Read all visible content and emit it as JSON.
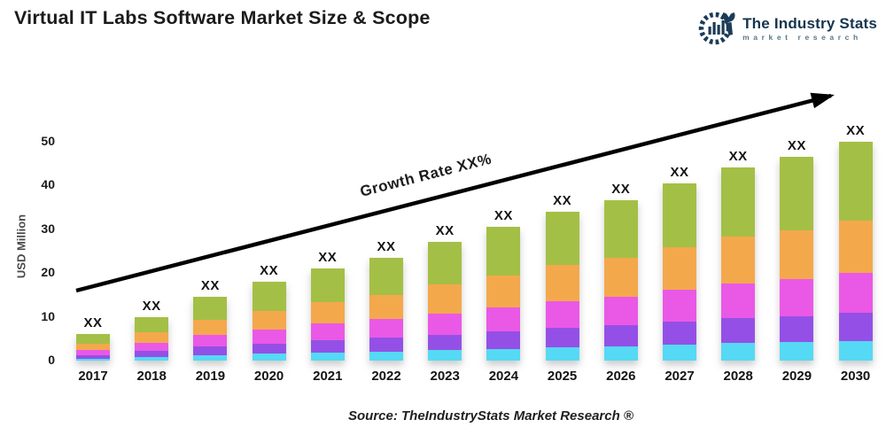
{
  "header": {
    "title": "Virtual IT Labs Software Market Size & Scope"
  },
  "logo": {
    "name": "The Industry Stats",
    "tagline": "market research",
    "color": "#16344f"
  },
  "chart_data": {
    "type": "bar",
    "stacked": true,
    "title": "Virtual IT Labs Software Market Size & Scope",
    "xlabel": "",
    "ylabel": "USD Million",
    "ylim": [
      0,
      50
    ],
    "yticks": [
      0,
      10,
      20,
      30,
      40,
      50
    ],
    "grid": false,
    "legend_position": "none",
    "bar_value_label": "XX",
    "annotation": {
      "text": "Growth Rate XX%",
      "style": "diagonal-arrow"
    },
    "categories": [
      "2017",
      "2018",
      "2019",
      "2020",
      "2021",
      "2022",
      "2023",
      "2024",
      "2025",
      "2026",
      "2027",
      "2028",
      "2029",
      "2030"
    ],
    "series": [
      {
        "name": "segment-cyan",
        "color": "#55d9f4",
        "values": [
          0.5,
          0.9,
          1.3,
          1.6,
          1.9,
          2.1,
          2.4,
          2.7,
          3.1,
          3.3,
          3.6,
          4.0,
          4.2,
          4.5
        ]
      },
      {
        "name": "segment-purple",
        "color": "#9450e6",
        "values": [
          0.8,
          1.3,
          1.9,
          2.3,
          2.7,
          3.1,
          3.5,
          4.0,
          4.4,
          4.7,
          5.3,
          5.7,
          6.0,
          6.5
        ]
      },
      {
        "name": "segment-magenta",
        "color": "#ea58e6",
        "values": [
          1.1,
          1.8,
          2.6,
          3.2,
          3.8,
          4.2,
          4.9,
          5.5,
          6.1,
          6.6,
          7.3,
          7.9,
          8.4,
          9.0
        ]
      },
      {
        "name": "segment-orange",
        "color": "#f4a84c",
        "values": [
          1.4,
          2.4,
          3.5,
          4.3,
          5.0,
          5.6,
          6.5,
          7.3,
          8.2,
          8.8,
          9.7,
          10.6,
          11.2,
          12.0
        ]
      },
      {
        "name": "segment-green",
        "color": "#a4bf45",
        "values": [
          2.2,
          3.6,
          5.2,
          6.5,
          7.6,
          8.5,
          9.7,
          11.0,
          12.2,
          13.1,
          14.6,
          15.8,
          16.7,
          18.0
        ]
      }
    ],
    "totals_estimated": [
      6.0,
      10.0,
      14.5,
      17.9,
      21.0,
      23.5,
      27.0,
      30.5,
      34.0,
      36.5,
      40.5,
      44.0,
      46.5,
      50.0
    ]
  },
  "source": {
    "text": "Source: TheIndustryStats Market Research ®"
  }
}
